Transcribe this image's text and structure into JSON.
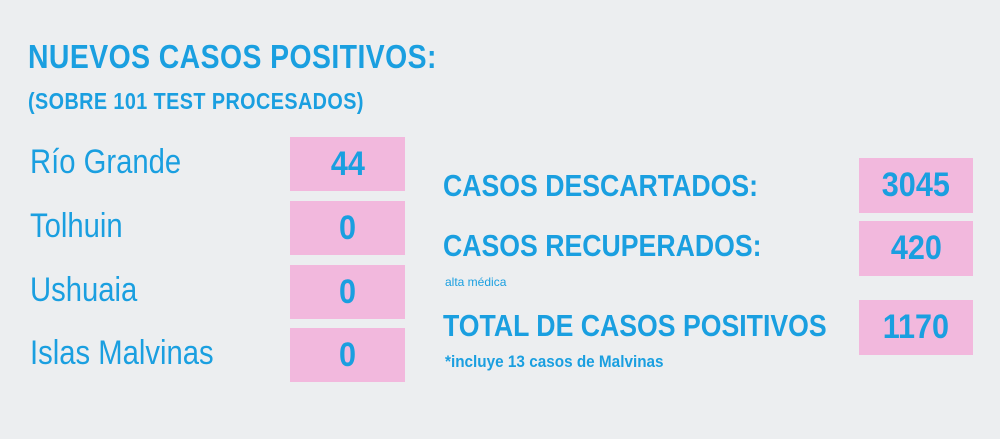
{
  "header": {
    "title": "NUEVOS CASOS POSITIVOS:",
    "subtitle": "(SOBRE 101 TEST PROCESADOS)"
  },
  "locations": [
    {
      "name": "Río Grande",
      "value": "44"
    },
    {
      "name": "Tolhuin",
      "value": "0"
    },
    {
      "name": "Ushuaia",
      "value": "0"
    },
    {
      "name": "Islas Malvinas",
      "value": "0"
    }
  ],
  "summary": {
    "discarded": {
      "label": "CASOS DESCARTADOS:",
      "value": "3045"
    },
    "recovered": {
      "label": "CASOS RECUPERADOS:",
      "value": "420",
      "note": "alta médica"
    },
    "total": {
      "label": "TOTAL DE CASOS POSITIVOS",
      "value": "1170",
      "note": "*incluye 13 casos de Malvinas"
    }
  },
  "colors": {
    "background": "#eceef0",
    "accent_text": "#1a9fe0",
    "value_box": "#f2b8dd"
  }
}
